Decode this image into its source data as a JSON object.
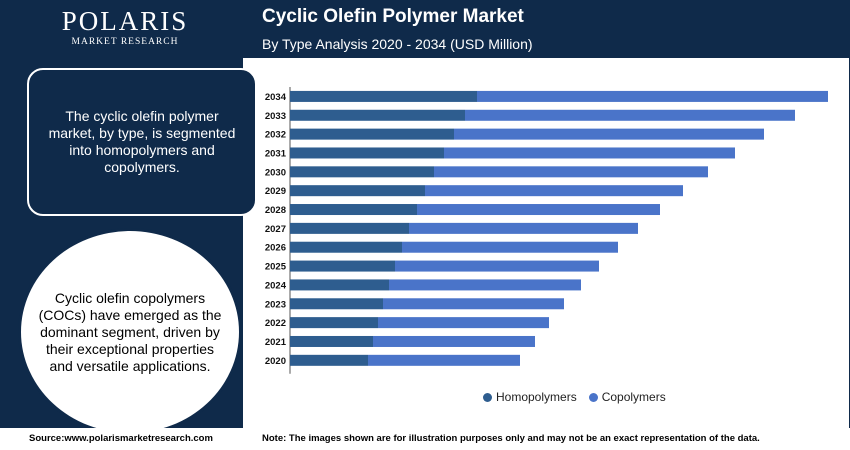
{
  "brand": {
    "name": "POLARIS",
    "tagline": "MARKET RESEARCH"
  },
  "header": {
    "title": "Cyclic Olefin Polymer Market",
    "subtitle": "By Type Analysis 2020 - 2034 (USD Million)"
  },
  "panel": {
    "box_text": "The cyclic olefin polymer market, by type, is segmented into homopolymers and copolymers.",
    "circle_text": "Cyclic olefin copolymers (COCs) have emerged as the dominant segment, driven by their exceptional properties and versatile applications."
  },
  "footer": {
    "source": "Source:www.polarismarketresearch.com",
    "note": "Note: The images shown are for illustration purposes only and may not be an exact representation of the data."
  },
  "colors": {
    "homopolymers": "#2e5d8f",
    "copolymers": "#4a74c9"
  },
  "chart_data": {
    "type": "bar",
    "orientation": "horizontal",
    "stacked": true,
    "categories": [
      "2034",
      "2033",
      "2032",
      "2031",
      "2030",
      "2029",
      "2028",
      "2027",
      "2026",
      "2025",
      "2024",
      "2023",
      "2022",
      "2021",
      "2020"
    ],
    "series": [
      {
        "name": "Homopolymers",
        "values": [
          187,
          175,
          164,
          154,
          144,
          135,
          127,
          119,
          112,
          105,
          99,
          93,
          88,
          83,
          78
        ]
      },
      {
        "name": "Copolymers",
        "values": [
          351,
          330,
          310,
          291,
          274,
          258,
          243,
          229,
          216,
          204,
          192,
          181,
          171,
          162,
          152
        ]
      }
    ],
    "legend": "bottom",
    "grid": false
  }
}
